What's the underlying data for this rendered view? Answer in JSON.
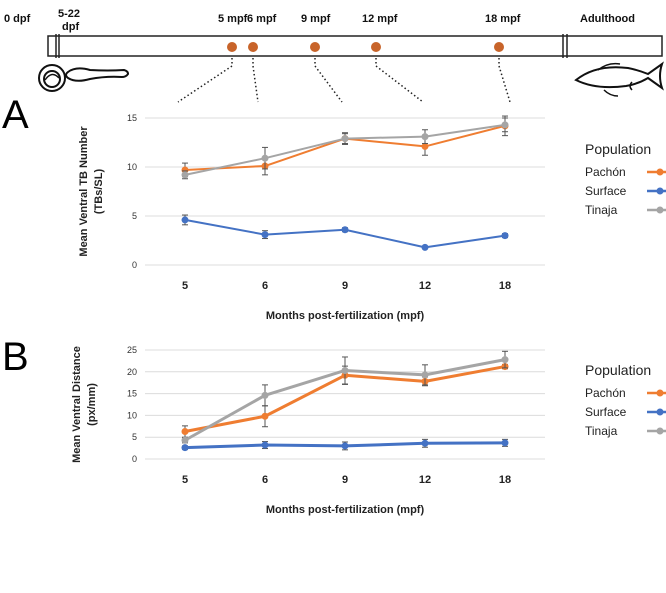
{
  "timeline": {
    "labels": {
      "start": "0 dpf",
      "larval_a": "5-22",
      "larval_b": "dpf",
      "adult": "Adulthood"
    },
    "markers": [
      "5 mpf",
      "6 mpf",
      "9 mpf",
      "12 mpf",
      "18 mpf"
    ],
    "marker_color": "#c8642a"
  },
  "colors": {
    "pachon": "#ef7d31",
    "surface": "#4472c4",
    "tinaja": "#a5a5a5"
  },
  "chart_data": [
    {
      "type": "line",
      "panel": "A",
      "title": "",
      "xlabel": "Months post-fertilization (mpf)",
      "ylabel_line1": "Mean Ventral TB Number",
      "ylabel_line2": "(TBs/SL)",
      "categories": [
        "5",
        "6",
        "9",
        "12",
        "18"
      ],
      "ylim": [
        0,
        15
      ],
      "yticks": [
        "0",
        "5",
        "10",
        "15"
      ],
      "legend_title": "Population",
      "series": [
        {
          "name": "Pachón",
          "values": [
            9.7,
            10.1,
            12.9,
            12.1,
            14.2
          ],
          "errors": [
            0.7,
            0.9,
            0.5,
            0.9,
            1.0
          ]
        },
        {
          "name": "Surface",
          "values": [
            4.6,
            3.1,
            3.6,
            1.8,
            3.0
          ],
          "errors": [
            0.5,
            0.4,
            0.2,
            0.1,
            0.2
          ]
        },
        {
          "name": "Tinaja",
          "values": [
            9.2,
            10.9,
            12.9,
            13.1,
            14.3
          ],
          "errors": [
            0.4,
            1.1,
            0.6,
            0.7,
            0.7
          ]
        }
      ]
    },
    {
      "type": "line",
      "panel": "B",
      "title": "",
      "xlabel": "Months post-fertilization (mpf)",
      "ylabel_line1": "Mean Ventral Distance",
      "ylabel_line2": "(px/mm)",
      "categories": [
        "5",
        "6",
        "9",
        "12",
        "18"
      ],
      "ylim": [
        0,
        25
      ],
      "yticks": [
        "0",
        "5",
        "10",
        "15",
        "20",
        "25"
      ],
      "legend_title": "Population",
      "series": [
        {
          "name": "Pachón",
          "values": [
            6.3,
            9.8,
            19.2,
            17.8,
            21.2
          ],
          "errors": [
            1.3,
            2.4,
            2.1,
            1.0,
            0.5
          ]
        },
        {
          "name": "Surface",
          "values": [
            2.6,
            3.2,
            3.0,
            3.6,
            3.7
          ],
          "errors": [
            0.4,
            0.8,
            0.9,
            0.9,
            0.8
          ]
        },
        {
          "name": "Tinaja",
          "values": [
            4.3,
            14.6,
            20.3,
            19.3,
            22.8
          ],
          "errors": [
            0.6,
            2.4,
            3.1,
            2.3,
            1.9
          ]
        }
      ]
    }
  ]
}
